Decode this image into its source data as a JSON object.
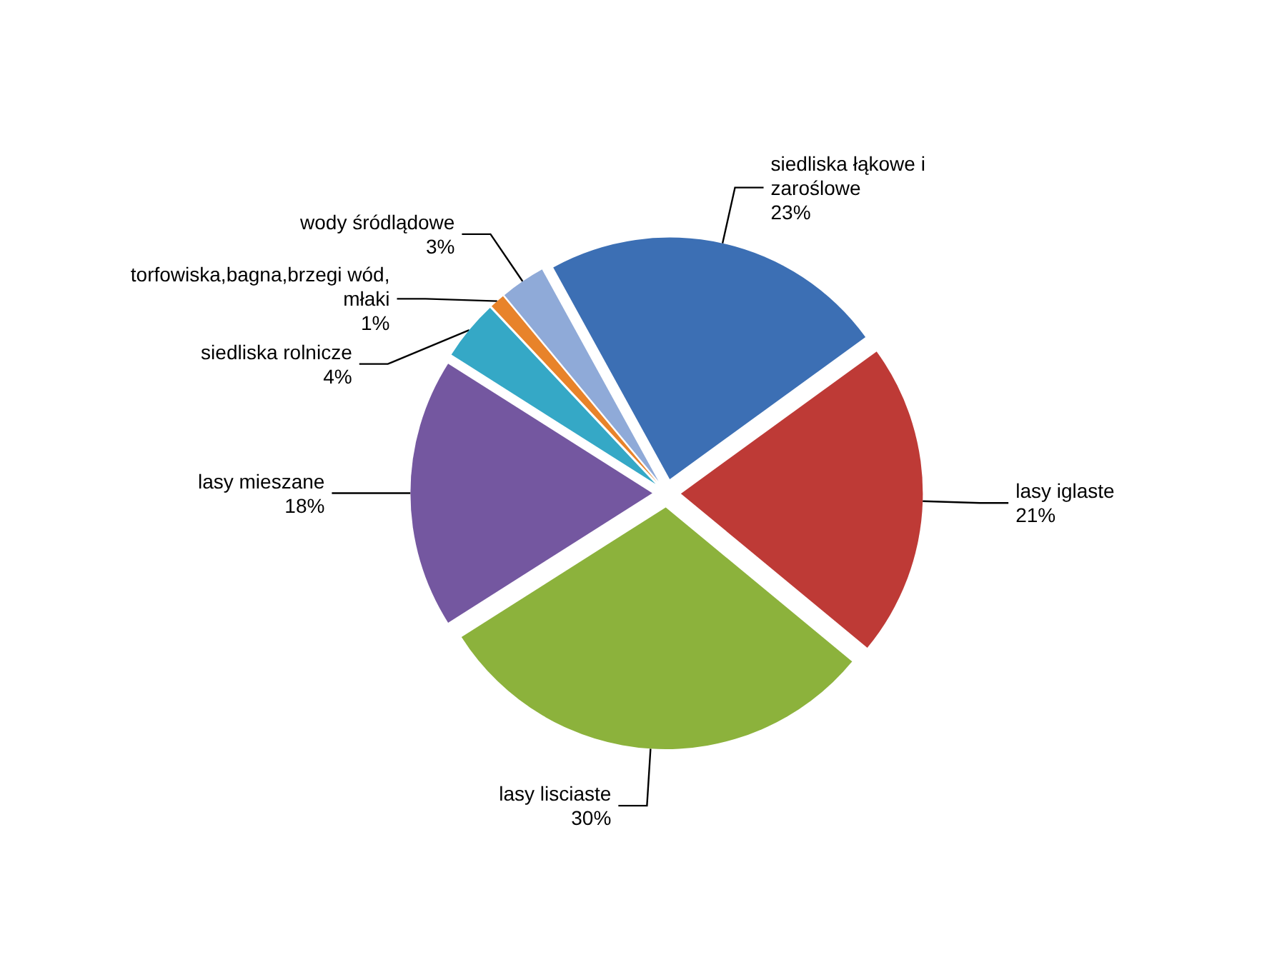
{
  "chart_data": {
    "type": "pie",
    "categories": [
      "siedliska łąkowe i zaroślowe",
      "lasy iglaste",
      "lasy lisciaste",
      "lasy mieszane",
      "siedliska rolnicze",
      "torfowiska,bagna,brzegi wód,młaki",
      "wody śródlądowe"
    ],
    "values": [
      23,
      21,
      30,
      18,
      4,
      1,
      3
    ],
    "value_labels": [
      "23%",
      "21%",
      "30%",
      "18%",
      "4%",
      "1%",
      "3%"
    ],
    "colors": [
      "#3c6fb4",
      "#be3a36",
      "#8cb23c",
      "#7457a0",
      "#35a8c6",
      "#e8832a",
      "#8faad8"
    ]
  }
}
